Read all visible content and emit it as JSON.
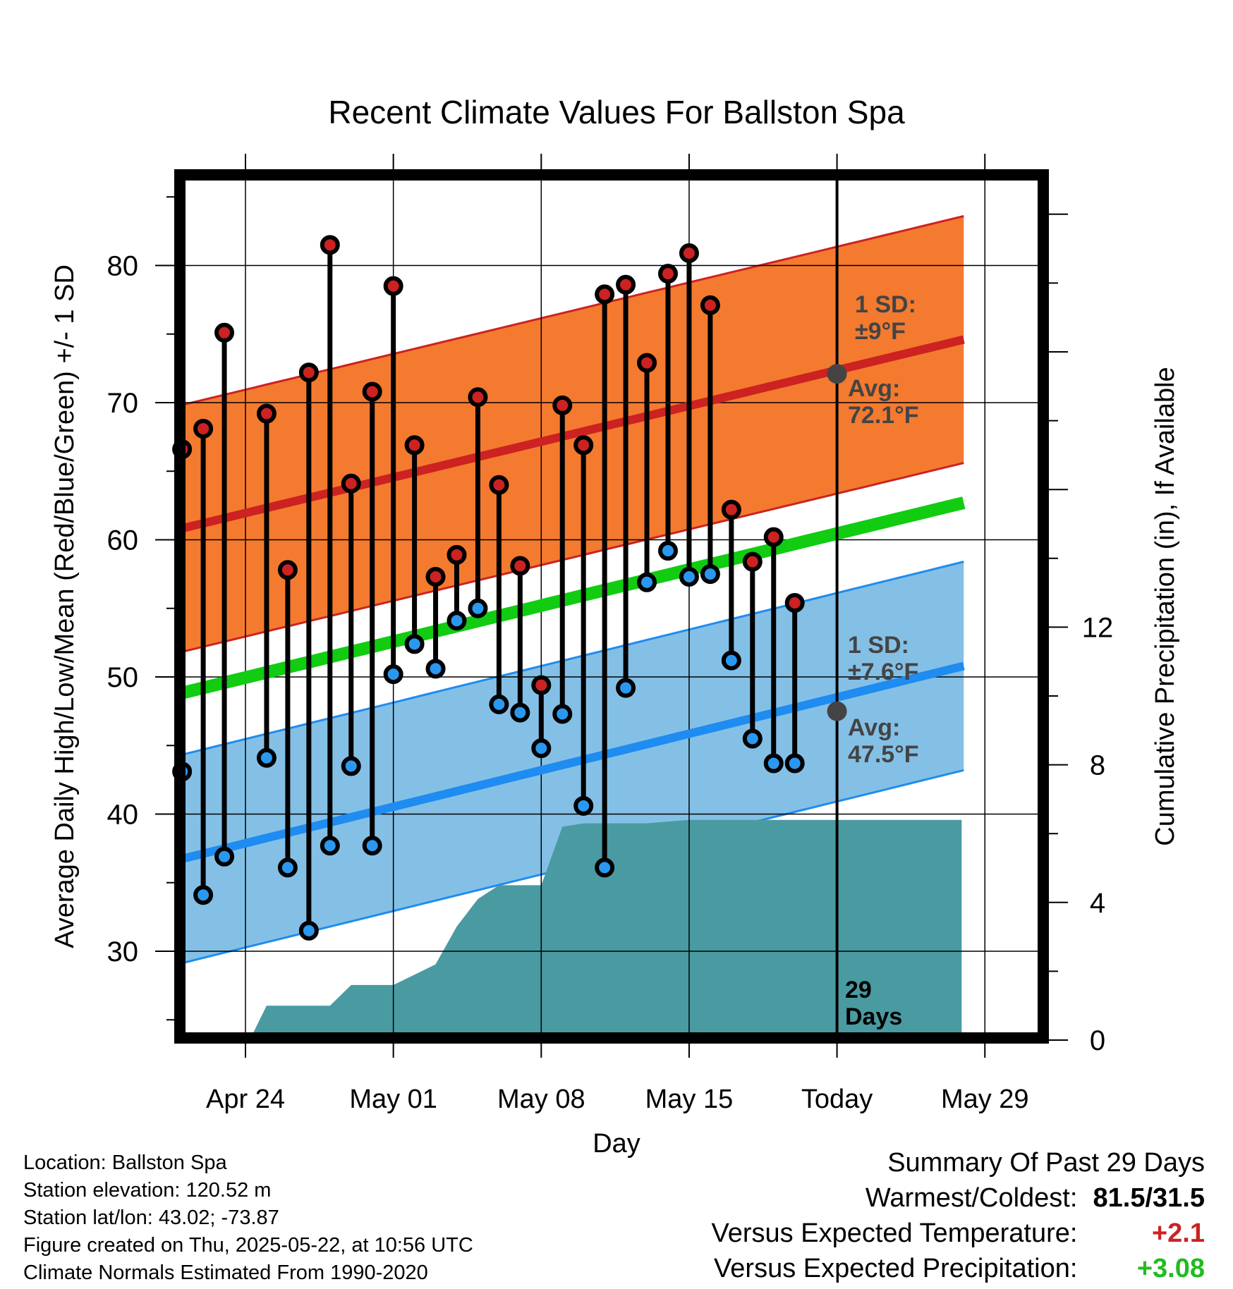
{
  "chart_data": {
    "type": "line",
    "title": "Recent Climate Values For Ballston Spa",
    "xlabel": "Day",
    "ylabel": "Average Daily High/Low/Mean (Red/Blue/Green) +/- 1 SD",
    "y2label": "Cumulative Precipitation (in), If Available",
    "x_ticks": [
      "Apr 24",
      "May 01",
      "May 08",
      "May 15",
      "Today",
      "May 29"
    ],
    "y_ticks": [
      "30",
      "40",
      "50",
      "60",
      "70",
      "80"
    ],
    "y2_ticks": [
      "0",
      "4",
      "8",
      "12"
    ],
    "ylim": [
      24,
      86
    ],
    "y2lim": [
      0,
      24.8
    ],
    "xlim": [
      -3,
      38
    ],
    "grid": true,
    "days": [
      0,
      1,
      2,
      3,
      4,
      5,
      6,
      7,
      8,
      9,
      10,
      11,
      12,
      13,
      14,
      15,
      16,
      17,
      18,
      19,
      20,
      21,
      22,
      23,
      24,
      25,
      26,
      27,
      28,
      29,
      30,
      31,
      32,
      33,
      34,
      35,
      36,
      37
    ],
    "day_note": "x index 0 = Apr 21; Apr 24 = 3, May 01 = 10, May 08 = 17, May 15 = 24, Today (May 22) = 31, May 29 = 38",
    "observed_highs": [
      66.6,
      68.1,
      75.1,
      null,
      69.2,
      57.8,
      72.2,
      81.5,
      64.1,
      70.8,
      78.5,
      66.9,
      57.3,
      58.9,
      70.4,
      64.0,
      58.1,
      49.4,
      69.8,
      66.9,
      77.9,
      78.6,
      72.9,
      79.4,
      80.9,
      77.1,
      62.2,
      58.4,
      60.2,
      55.4
    ],
    "observed_lows": [
      43.1,
      34.1,
      36.9,
      null,
      44.1,
      36.1,
      31.5,
      37.7,
      43.5,
      37.7,
      50.2,
      52.4,
      50.6,
      54.1,
      55.0,
      48.0,
      47.4,
      44.8,
      47.3,
      40.6,
      36.1,
      49.2,
      56.9,
      59.2,
      57.3,
      57.5,
      51.2,
      45.5,
      43.7,
      43.7
    ],
    "normal_high": {
      "start": 60.7,
      "end": 74.6
    },
    "normal_high_sd": 9,
    "normal_low": {
      "start": 36.6,
      "end": 50.8
    },
    "normal_low_sd": 7.6,
    "normal_mean": {
      "start": 48.7,
      "end": 62.7
    },
    "precip_cumulative": [
      [
        0,
        0
      ],
      [
        3.2,
        0
      ],
      [
        4,
        1
      ],
      [
        7,
        1
      ],
      [
        8,
        1.6
      ],
      [
        10,
        1.6
      ],
      [
        11,
        1.9
      ],
      [
        12,
        2.2
      ],
      [
        13,
        3.3
      ],
      [
        14,
        4.1
      ],
      [
        15,
        4.5
      ],
      [
        16,
        4.5
      ],
      [
        17,
        4.5
      ],
      [
        18,
        6.2
      ],
      [
        19,
        6.3
      ],
      [
        20,
        6.3
      ],
      [
        21,
        6.3
      ],
      [
        22,
        6.3
      ],
      [
        23,
        6.35
      ],
      [
        24,
        6.4
      ],
      [
        25,
        6.4
      ],
      [
        26,
        6.4
      ],
      [
        27,
        6.4
      ],
      [
        28,
        6.4
      ],
      [
        29,
        6.4
      ],
      [
        30,
        6.4
      ],
      [
        31,
        6.4
      ],
      [
        36.9,
        6.4
      ]
    ],
    "annotations": {
      "high_sd": [
        "1 SD:",
        "±9°F"
      ],
      "high_avg": [
        "Avg:",
        "72.1°F"
      ],
      "low_sd": [
        "1 SD:",
        "±7.6°F"
      ],
      "low_avg": [
        "Avg:",
        "47.5°F"
      ],
      "days_label": [
        "29",
        "Days"
      ]
    },
    "today_marker": {
      "x": 31,
      "high": 72.1,
      "low": 47.5
    }
  },
  "colors": {
    "high_band": "#f47a2f",
    "high_line": "#cc2222",
    "low_band": "#84c0e6",
    "low_line": "#1e8cf0",
    "mean_line": "#11cc11",
    "precip": "#4a9aa2",
    "high_dot": "#cc2222",
    "low_dot": "#2a98f0",
    "annotation_text": "#444444",
    "today_dot": "#444444"
  },
  "info": {
    "location": "Location: Ballston Spa",
    "elevation": "Station elevation: 120.52 m",
    "latlon": "Station lat/lon: 43.02; -73.87",
    "created": "Figure created on Thu, 2025-05-22, at 10:56 UTC",
    "normals": "Climate Normals Estimated From 1990-2020"
  },
  "summary": {
    "heading": "Summary Of Past 29 Days",
    "warm_cold_label": "Warmest/Coldest:",
    "warm_cold_value": "81.5/31.5",
    "temp_label": "Versus Expected Temperature:",
    "temp_value": "+2.1",
    "precip_label": "Versus Expected Precipitation:",
    "precip_value": "+3.08"
  }
}
